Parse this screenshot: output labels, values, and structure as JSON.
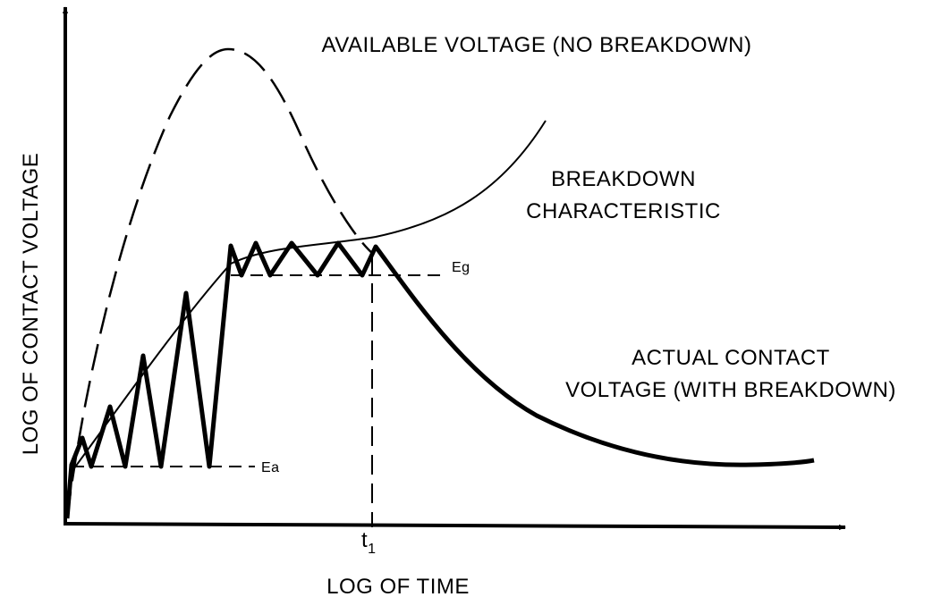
{
  "title": "AVAILABLE VOLTAGE (NO BREAKDOWN)",
  "breakdown_label": [
    "BREAKDOWN",
    "CHARACTERISTIC"
  ],
  "actual_label": [
    "ACTUAL CONTACT",
    "VOLTAGE (WITH BREAKDOWN)"
  ],
  "levels": {
    "eg": "Eg",
    "ea": "Ea"
  },
  "time_marker": {
    "base": "t",
    "sub": "1"
  },
  "x_axis_label": "LOG OF TIME",
  "y_axis_label": "LOG OF CONTACT VOLTAGE"
}
